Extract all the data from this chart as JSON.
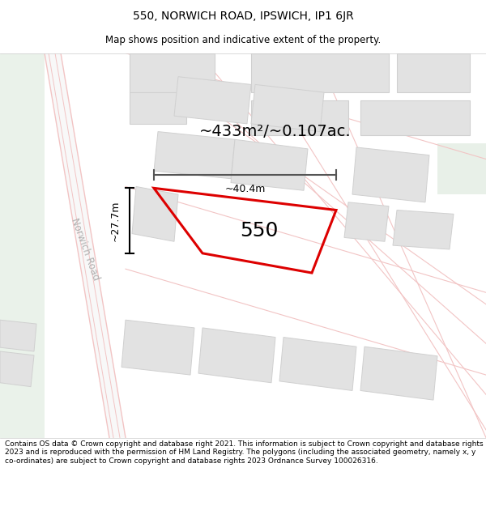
{
  "title": "550, NORWICH ROAD, IPSWICH, IP1 6JR",
  "subtitle": "Map shows position and indicative extent of the property.",
  "footer": "Contains OS data © Crown copyright and database right 2021. This information is subject to Crown copyright and database rights 2023 and is reproduced with the permission of HM Land Registry. The polygons (including the associated geometry, namely x, y co-ordinates) are subject to Crown copyright and database rights 2023 Ordnance Survey 100026316.",
  "map_bg": "#f7f7f5",
  "road_color": "#f2c4c4",
  "building_fill": "#e2e2e2",
  "building_edge": "#d0d0d0",
  "green_fill": "#eaf2ea",
  "subject_edge": "#dd0000",
  "subject_linewidth": 2.2,
  "area_text": "~433m²/~0.107ac.",
  "label_550": "550",
  "dim_width": "~40.4m",
  "dim_height": "~27.7m",
  "road_label1": "Norwich",
  "road_label2": "Road",
  "title_fontsize": 10,
  "subtitle_fontsize": 8.5,
  "footer_fontsize": 6.5
}
